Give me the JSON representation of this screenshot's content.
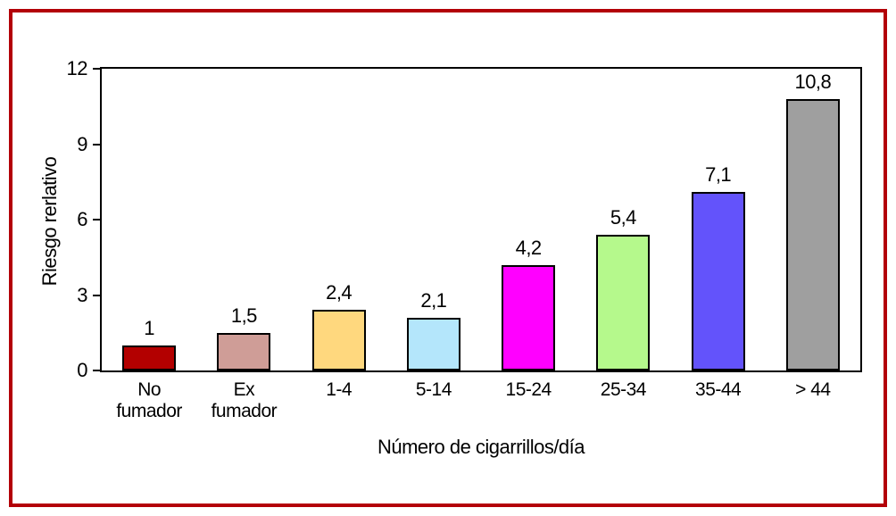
{
  "frame": {
    "border_color": "#b30008"
  },
  "chart_data": {
    "type": "bar",
    "title": "",
    "xlabel": "Número de cigarrillos/día",
    "ylabel": "Riesgo rerlativo",
    "ylim": [
      0,
      12
    ],
    "yticks": [
      0,
      3,
      6,
      9,
      12
    ],
    "categories": [
      "No fumador",
      "Ex fumador",
      "1-4",
      "5-14",
      "15-24",
      "25-34",
      "35-44",
      "> 44"
    ],
    "values": [
      1,
      1.5,
      2.4,
      2.1,
      4.2,
      5.4,
      7.1,
      10.8
    ],
    "value_labels": [
      "1",
      "1,5",
      "2,4",
      "2,1",
      "4,2",
      "5,4",
      "7,1",
      "10,8"
    ],
    "bar_colors": [
      "#b30000",
      "#cf9d97",
      "#ffd87e",
      "#b4e6fb",
      "#ff00ff",
      "#b5f98c",
      "#6353fb",
      "#9f9f9f"
    ],
    "bar_outline_color": "#000000",
    "grid": false,
    "legend": null
  }
}
